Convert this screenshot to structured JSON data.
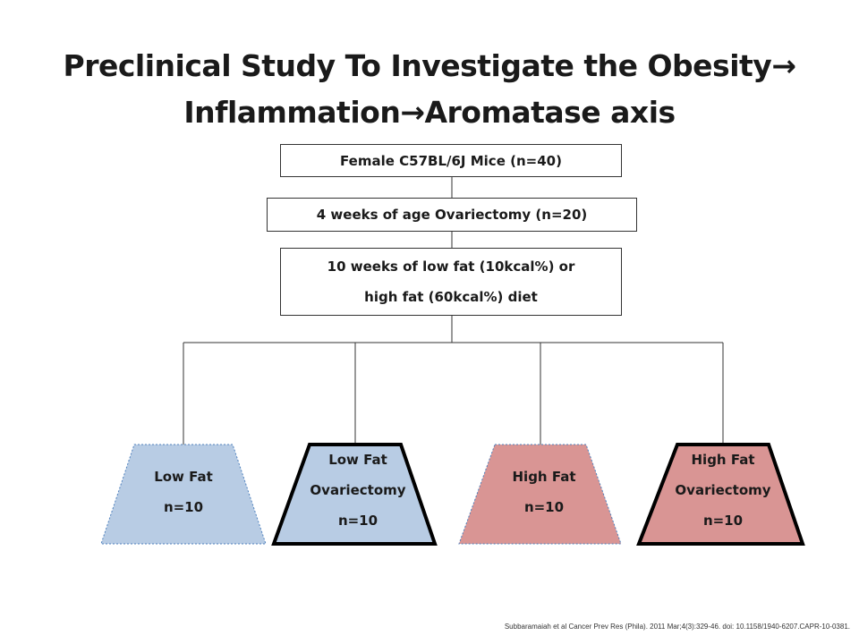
{
  "title": {
    "line1_text": "Preclinical Study To Investigate the Obesity",
    "line1_arrow": "→",
    "line2_part1": "Inflammation",
    "line2_arrow": "→",
    "line2_part2": "Aromatase axis"
  },
  "flow": {
    "step1": "Female C57BL/6J Mice (n=40)",
    "step2": "4 weeks of age Ovariectomy (n=20)",
    "step3_line1": "10 weeks of low fat (10kcal%) or",
    "step3_line2": "high fat (60kcal%) diet"
  },
  "groups": [
    {
      "line1": "Low Fat",
      "line2": "n=10",
      "line3": "",
      "fill": "#b8cce4",
      "border": "dashed-blue"
    },
    {
      "line1": "Low Fat",
      "line2": "Ovariectomy",
      "line3": "n=10",
      "fill": "#b8cce4",
      "border": "solid-black"
    },
    {
      "line1": "High Fat",
      "line2": "n=10",
      "line3": "",
      "fill": "#d99594",
      "border": "dashed-blue"
    },
    {
      "line1": "High Fat",
      "line2": "Ovariectomy",
      "line3": "n=10",
      "fill": "#d99594",
      "border": "solid-black"
    }
  ],
  "citation": "Subbaramaiah et al Cancer Prev Res (Phila). 2011 Mar;4(3):329-46. doi: 10.1158/1940-6207.CAPR-10-0381."
}
